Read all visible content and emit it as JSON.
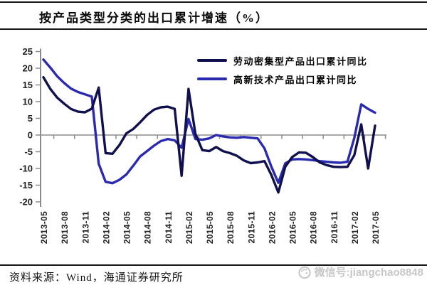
{
  "header": {
    "title": "按产品类型分类的出口累计增速（%）"
  },
  "chart_data": {
    "type": "line",
    "title": "按产品类型分类的出口累计增速（%）",
    "xlabel": "",
    "ylabel": "",
    "grid": false,
    "legend_position": "top-center",
    "axis_color": "#8c8c8c",
    "tick_label_color": "#222222",
    "ylim": [
      -20,
      25
    ],
    "y_ticks": [
      25,
      20,
      15,
      10,
      5,
      0,
      -5,
      -10,
      -15,
      -20
    ],
    "x_start": "2013-05",
    "x_end": "2017-05",
    "points_per_series": 49,
    "x_tick_labels": [
      "2013-05",
      "2013-08",
      "2013-11",
      "2014-02",
      "2014-05",
      "2014-08",
      "2014-11",
      "2015-02",
      "2015-05",
      "2015-08",
      "2015-11",
      "2016-02",
      "2016-05",
      "2016-08",
      "2016-11",
      "2017-02",
      "2017-05"
    ],
    "series": [
      {
        "name": "劳动密集型产品出口累计同比",
        "color": "#10104f",
        "values": [
          17.3,
          13.8,
          11.2,
          9.4,
          7.8,
          7.0,
          6.8,
          7.9,
          14.2,
          -5.4,
          -5.6,
          -3.0,
          0.5,
          1.8,
          3.8,
          6.0,
          7.6,
          8.3,
          8.5,
          7.8,
          -12.2,
          13.8,
          0.3,
          -4.5,
          -4.8,
          -3.6,
          -4.8,
          -5.4,
          -6.2,
          -7.6,
          -8.4,
          -8.2,
          -7.8,
          -12.0,
          -17.2,
          -9.5,
          -6.6,
          -5.2,
          -5.3,
          -6.6,
          -8.2,
          -9.0,
          -9.5,
          -9.6,
          -9.5,
          -6.0,
          3.2,
          -10.0,
          2.8
        ]
      },
      {
        "name": "高新技术产品出口累计同比",
        "color": "#2a2ab0",
        "values": [
          22.6,
          20.2,
          17.6,
          15.6,
          13.9,
          12.9,
          12.2,
          11.5,
          -8.6,
          -14.0,
          -14.4,
          -13.4,
          -11.8,
          -9.2,
          -6.4,
          -4.8,
          -3.2,
          -1.8,
          -1.2,
          -1.6,
          -3.8,
          4.8,
          -1.2,
          -1.4,
          -1.0,
          0.0,
          -0.4,
          -0.7,
          -0.8,
          -0.6,
          -0.8,
          -1.0,
          -4.0,
          -9.5,
          -14.3,
          -8.5,
          -7.3,
          -7.2,
          -7.3,
          -7.5,
          -7.8,
          -8.0,
          -8.2,
          -8.3,
          -8.0,
          -0.8,
          9.2,
          7.8,
          6.7
        ]
      }
    ]
  },
  "footer": {
    "source": "资料来源：Wind，海通证券研究所",
    "watermark": "微信号:jiangchao8848",
    "watermark_icon": "wechat-smiley"
  }
}
